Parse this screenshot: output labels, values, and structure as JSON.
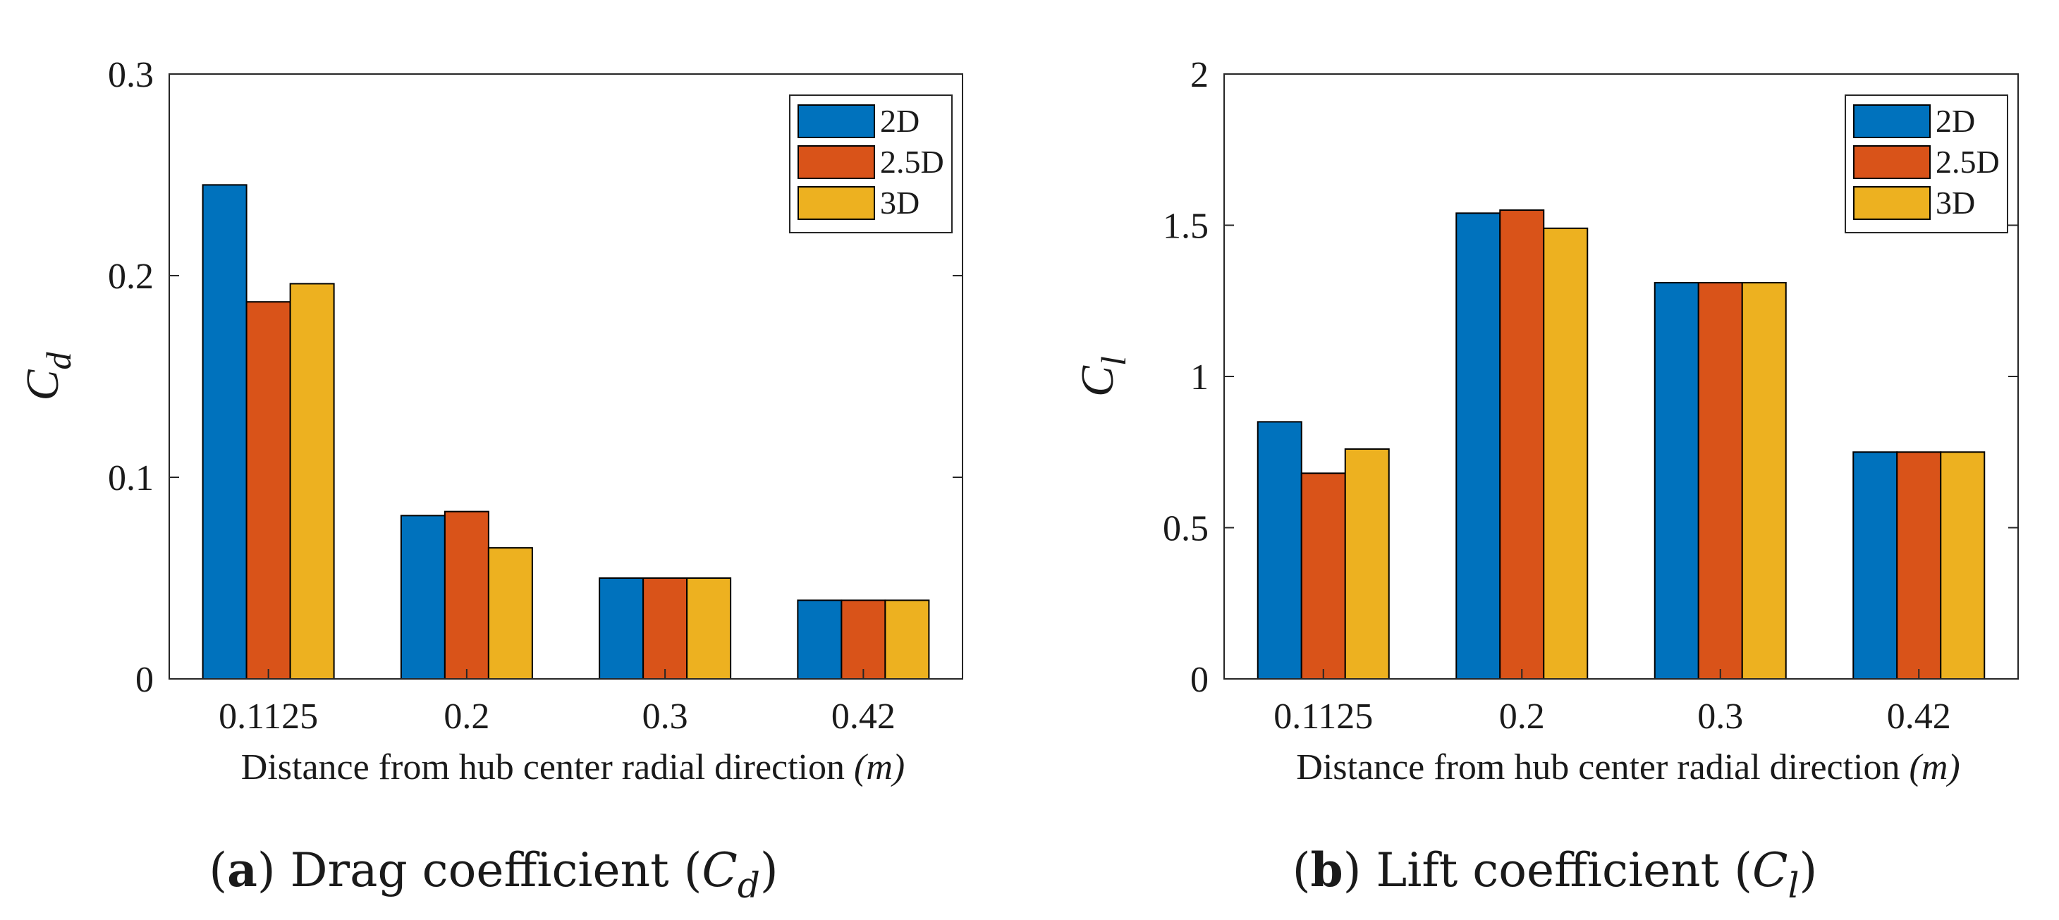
{
  "chart_data": [
    {
      "type": "bar",
      "title": "",
      "caption_letter": "a",
      "caption_text": "Drag coefficient",
      "caption_symbol": "C",
      "caption_sub": "d",
      "ylabel_symbol": "C",
      "ylabel_sub": "d",
      "xlabel": "Distance from hub center radial direction ",
      "xlabel_unit": "(m)",
      "categories": [
        "0.1125",
        "0.2",
        "0.3",
        "0.42"
      ],
      "series": [
        {
          "name": "2D",
          "values": [
            0.245,
            0.081,
            0.05,
            0.039
          ]
        },
        {
          "name": "2.5D",
          "values": [
            0.187,
            0.083,
            0.05,
            0.039
          ]
        },
        {
          "name": "3D",
          "values": [
            0.196,
            0.065,
            0.05,
            0.039
          ]
        }
      ],
      "ylim": [
        0,
        0.3
      ],
      "yticks": [
        0,
        0.1,
        0.2,
        0.3
      ],
      "ytick_labels": [
        "0",
        "0.1",
        "0.2",
        "0.3"
      ],
      "legend_position": "top-right",
      "grid": false
    },
    {
      "type": "bar",
      "title": "",
      "caption_letter": "b",
      "caption_text": "Lift coefficient",
      "caption_symbol": "C",
      "caption_sub": "l",
      "ylabel_symbol": "C",
      "ylabel_sub": "l",
      "xlabel": "Distance from hub center radial direction ",
      "xlabel_unit": "(m)",
      "categories": [
        "0.1125",
        "0.2",
        "0.3",
        "0.42"
      ],
      "series": [
        {
          "name": "2D",
          "values": [
            0.85,
            1.54,
            1.31,
            0.75
          ]
        },
        {
          "name": "2.5D",
          "values": [
            0.68,
            1.55,
            1.31,
            0.75
          ]
        },
        {
          "name": "3D",
          "values": [
            0.76,
            1.49,
            1.31,
            0.75
          ]
        }
      ],
      "ylim": [
        0,
        2
      ],
      "yticks": [
        0,
        0.5,
        1,
        1.5,
        2
      ],
      "ytick_labels": [
        "0",
        "0.5",
        "1",
        "1.5",
        "2"
      ],
      "legend_position": "top-right",
      "grid": false
    }
  ],
  "colors": {
    "series": [
      "#0072BD",
      "#D95319",
      "#EDB120"
    ],
    "axis": "#262626",
    "bar_edge": "#000000"
  }
}
